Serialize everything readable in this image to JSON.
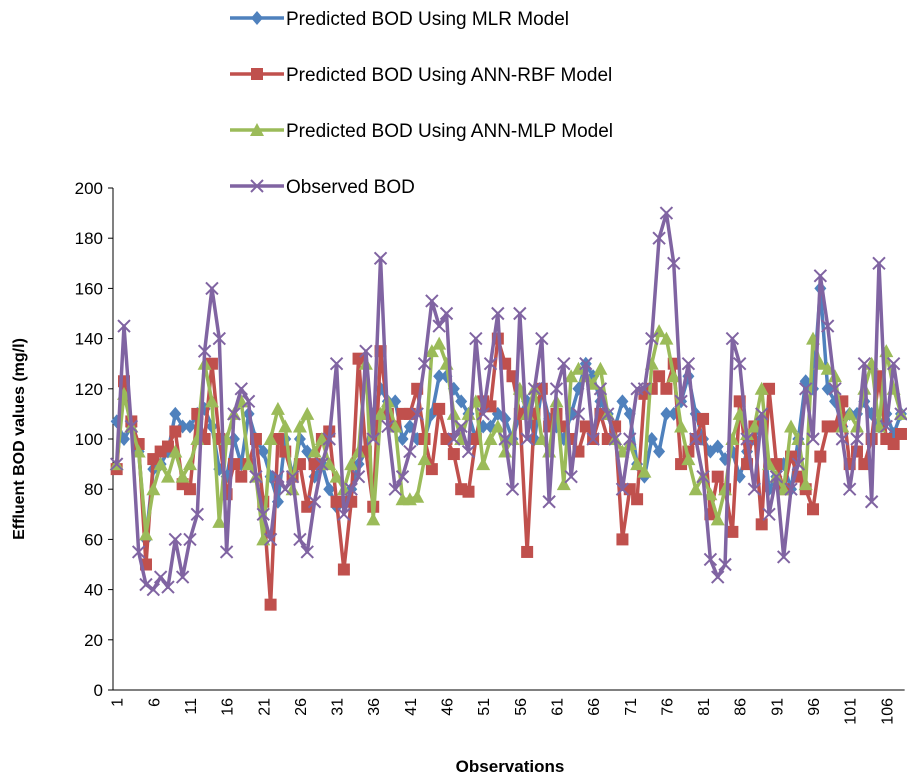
{
  "chart_data": {
    "type": "line",
    "xlabel": "Observations",
    "ylabel": "Effluent BOD values  (mg/l)",
    "categories": [
      1,
      null,
      null,
      null,
      null,
      6,
      null,
      null,
      null,
      null,
      11,
      null,
      null,
      null,
      null,
      16,
      null,
      null,
      null,
      null,
      21,
      null,
      null,
      null,
      null,
      26,
      null,
      null,
      null,
      null,
      31,
      null,
      null,
      null,
      null,
      36,
      null,
      null,
      null,
      null,
      41,
      null,
      null,
      null,
      null,
      46,
      null,
      null,
      null,
      null,
      51,
      null,
      null,
      null,
      null,
      56,
      null,
      null,
      null,
      null,
      61,
      null,
      null,
      null,
      null,
      66,
      null,
      null,
      null,
      null,
      71,
      null,
      null,
      null,
      null,
      76,
      null,
      null,
      null,
      null,
      81,
      null,
      null,
      null,
      null,
      86,
      null,
      null,
      null,
      null,
      91,
      null,
      null,
      null,
      null,
      96,
      null,
      null,
      null,
      null,
      101,
      null,
      null,
      null,
      null,
      106,
      null,
      null
    ],
    "ylim": [
      0,
      200
    ],
    "yticks": [
      0,
      20,
      40,
      60,
      80,
      100,
      120,
      140,
      160,
      180,
      200
    ],
    "grid": false,
    "legend": "top",
    "series": [
      {
        "name": "Predicted BOD Using MLR Model",
        "color": "#4f81bd",
        "marker": "diamond",
        "values": [
          107,
          100,
          105,
          95,
          60,
          88,
          90,
          95,
          110,
          105,
          105,
          110,
          112,
          105,
          88,
          85,
          100,
          90,
          110,
          100,
          95,
          85,
          75,
          100,
          85,
          100,
          95,
          85,
          90,
          80,
          73,
          75,
          80,
          90,
          95,
          110,
          120,
          115,
          115,
          100,
          105,
          100,
          100,
          110,
          125,
          125,
          120,
          115,
          110,
          100,
          105,
          105,
          110,
          108,
          100,
          110,
          115,
          100,
          120,
          108,
          105,
          100,
          110,
          120,
          130,
          125,
          115,
          110,
          105,
          115,
          110,
          90,
          85,
          100,
          95,
          110,
          110,
          115,
          125,
          110,
          100,
          95,
          97,
          92,
          95,
          85,
          95,
          100,
          108,
          80,
          85,
          90,
          80,
          100,
          123,
          120,
          160,
          120,
          115,
          105,
          110,
          110,
          115,
          110,
          105,
          110,
          102,
          110
        ]
      },
      {
        "name": "Predicted BOD Using ANN-RBF Model",
        "color": "#c0504d",
        "marker": "square",
        "values": [
          88,
          123,
          107,
          98,
          50,
          92,
          95,
          97,
          103,
          82,
          80,
          110,
          100,
          130,
          100,
          78,
          90,
          85,
          90,
          100,
          75,
          34,
          100,
          95,
          85,
          90,
          73,
          90,
          100,
          103,
          75,
          48,
          75,
          132,
          95,
          73,
          135,
          110,
          105,
          110,
          110,
          120,
          100,
          88,
          112,
          100,
          94,
          80,
          79,
          100,
          115,
          113,
          140,
          130,
          125,
          110,
          55,
          110,
          120,
          105,
          110,
          105,
          100,
          95,
          105,
          100,
          110,
          100,
          105,
          60,
          80,
          76,
          118,
          120,
          125,
          120,
          130,
          90,
          95,
          100,
          108,
          70,
          85,
          80,
          63,
          115,
          90,
          105,
          66,
          120,
          90,
          80,
          93,
          85,
          80,
          72,
          93,
          105,
          105,
          115,
          90,
          95,
          90,
          100,
          125,
          100,
          98,
          102
        ]
      },
      {
        "name": "Predicted BOD Using ANN-MLP Model",
        "color": "#9bbb59",
        "marker": "triangle",
        "values": [
          90,
          118,
          105,
          95,
          62,
          80,
          90,
          85,
          95,
          85,
          90,
          100,
          130,
          115,
          67,
          100,
          110,
          115,
          90,
          85,
          60,
          100,
          112,
          105,
          80,
          105,
          110,
          95,
          100,
          90,
          85,
          80,
          90,
          95,
          130,
          68,
          110,
          115,
          105,
          76,
          76,
          77,
          92,
          135,
          138,
          130,
          110,
          100,
          110,
          115,
          90,
          100,
          105,
          95,
          100,
          120,
          110,
          120,
          100,
          95,
          115,
          82,
          125,
          128,
          125,
          122,
          128,
          110,
          100,
          95,
          98,
          90,
          87,
          130,
          143,
          140,
          125,
          105,
          92,
          80,
          85,
          78,
          68,
          80,
          100,
          110,
          102,
          105,
          120,
          90,
          85,
          80,
          105,
          100,
          82,
          140,
          130,
          128,
          125,
          105,
          110,
          105,
          120,
          130,
          105,
          135,
          120,
          110
        ]
      },
      {
        "name": "Observed BOD",
        "color": "#8064a2",
        "marker": "x",
        "values": [
          90,
          145,
          105,
          55,
          42,
          40,
          45,
          41,
          60,
          45,
          60,
          70,
          135,
          160,
          140,
          55,
          110,
          120,
          115,
          85,
          70,
          60,
          85,
          80,
          85,
          60,
          55,
          75,
          90,
          100,
          130,
          70,
          80,
          85,
          135,
          100,
          172,
          105,
          80,
          85,
          95,
          110,
          130,
          155,
          145,
          150,
          100,
          105,
          95,
          140,
          110,
          130,
          150,
          100,
          80,
          150,
          100,
          120,
          140,
          75,
          120,
          130,
          85,
          110,
          130,
          100,
          120,
          110,
          100,
          80,
          100,
          120,
          120,
          140,
          180,
          190,
          170,
          115,
          130,
          100,
          85,
          52,
          45,
          50,
          140,
          130,
          100,
          80,
          110,
          70,
          85,
          53,
          80,
          90,
          120,
          100,
          165,
          145,
          120,
          100,
          80,
          100,
          130,
          75,
          170,
          105,
          130,
          110
        ]
      }
    ]
  }
}
